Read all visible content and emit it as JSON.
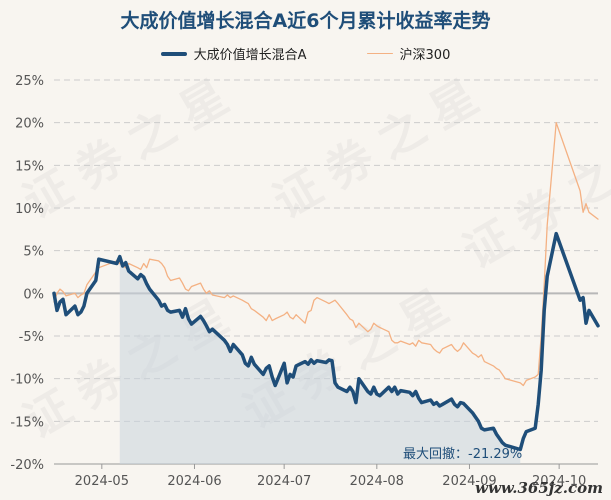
{
  "chart_data": {
    "type": "line",
    "title": "大成价值增长混合A近6个月累计收益率走势",
    "xlabel": "",
    "ylabel": "",
    "x_ticks": [
      "2024-05",
      "2024-06",
      "2024-07",
      "2024-08",
      "2024-09",
      "2024-10"
    ],
    "y_ticks": [
      "25%",
      "20%",
      "15%",
      "10%",
      "5%",
      "0%",
      "-5%",
      "-10%",
      "-15%",
      "-20%"
    ],
    "ylim": [
      -20,
      25
    ],
    "legend_position": "top-center",
    "grid": true,
    "series": [
      {
        "name": "大成价值增长混合A",
        "color": "#1f4e79",
        "style": "thick",
        "points": [
          [
            "2024-04-15",
            0.0
          ],
          [
            "2024-04-16",
            -2.0
          ],
          [
            "2024-04-17",
            -1.0
          ],
          [
            "2024-04-18",
            -0.7
          ],
          [
            "2024-04-19",
            -2.5
          ],
          [
            "2024-04-22",
            -1.5
          ],
          [
            "2024-04-23",
            -2.5
          ],
          [
            "2024-04-24",
            -2.2
          ],
          [
            "2024-04-25",
            -1.5
          ],
          [
            "2024-04-26",
            0.0
          ],
          [
            "2024-04-29",
            1.5
          ],
          [
            "2024-04-30",
            4.0
          ],
          [
            "2024-05-06",
            3.5
          ],
          [
            "2024-05-07",
            4.3
          ],
          [
            "2024-05-08",
            3.2
          ],
          [
            "2024-05-09",
            3.6
          ],
          [
            "2024-05-10",
            2.6
          ],
          [
            "2024-05-13",
            1.7
          ],
          [
            "2024-05-14",
            2.2
          ],
          [
            "2024-05-15",
            1.9
          ],
          [
            "2024-05-16",
            1.1
          ],
          [
            "2024-05-17",
            0.5
          ],
          [
            "2024-05-20",
            -0.8
          ],
          [
            "2024-05-21",
            -1.5
          ],
          [
            "2024-05-22",
            -1.3
          ],
          [
            "2024-05-23",
            -2.0
          ],
          [
            "2024-05-24",
            -2.2
          ],
          [
            "2024-05-27",
            -2.0
          ],
          [
            "2024-05-28",
            -2.8
          ],
          [
            "2024-05-29",
            -1.8
          ],
          [
            "2024-05-30",
            -3.0
          ],
          [
            "2024-05-31",
            -3.6
          ],
          [
            "2024-06-03",
            -2.7
          ],
          [
            "2024-06-04",
            -3.2
          ],
          [
            "2024-06-05",
            -3.8
          ],
          [
            "2024-06-06",
            -4.5
          ],
          [
            "2024-06-07",
            -4.2
          ],
          [
            "2024-06-11",
            -5.5
          ],
          [
            "2024-06-12",
            -6.0
          ],
          [
            "2024-06-13",
            -6.8
          ],
          [
            "2024-06-14",
            -6.0
          ],
          [
            "2024-06-17",
            -7.2
          ],
          [
            "2024-06-18",
            -8.2
          ],
          [
            "2024-06-19",
            -8.5
          ],
          [
            "2024-06-20",
            -7.5
          ],
          [
            "2024-06-21",
            -8.3
          ],
          [
            "2024-06-24",
            -9.5
          ],
          [
            "2024-06-25",
            -8.8
          ],
          [
            "2024-06-26",
            -8.5
          ],
          [
            "2024-06-27",
            -9.8
          ],
          [
            "2024-06-28",
            -10.8
          ],
          [
            "2024-07-01",
            -8.2
          ],
          [
            "2024-07-02",
            -10.5
          ],
          [
            "2024-07-03",
            -9.5
          ],
          [
            "2024-07-04",
            -9.8
          ],
          [
            "2024-07-05",
            -8.5
          ],
          [
            "2024-07-08",
            -8.0
          ],
          [
            "2024-07-09",
            -8.3
          ],
          [
            "2024-07-10",
            -7.8
          ],
          [
            "2024-07-11",
            -8.2
          ],
          [
            "2024-07-12",
            -7.9
          ],
          [
            "2024-07-15",
            -8.1
          ],
          [
            "2024-07-16",
            -7.8
          ],
          [
            "2024-07-17",
            -7.9
          ],
          [
            "2024-07-18",
            -10.5
          ],
          [
            "2024-07-19",
            -11.0
          ],
          [
            "2024-07-22",
            -11.5
          ],
          [
            "2024-07-23",
            -11.0
          ],
          [
            "2024-07-24",
            -11.5
          ],
          [
            "2024-07-25",
            -12.8
          ],
          [
            "2024-07-26",
            -10.0
          ],
          [
            "2024-07-29",
            -11.5
          ],
          [
            "2024-07-30",
            -11.8
          ],
          [
            "2024-07-31",
            -11.0
          ],
          [
            "2024-08-01",
            -11.8
          ],
          [
            "2024-08-02",
            -12.0
          ],
          [
            "2024-08-05",
            -11.0
          ],
          [
            "2024-08-06",
            -11.5
          ],
          [
            "2024-08-07",
            -11.0
          ],
          [
            "2024-08-08",
            -11.8
          ],
          [
            "2024-08-09",
            -11.4
          ],
          [
            "2024-08-12",
            -11.6
          ],
          [
            "2024-08-13",
            -12.0
          ],
          [
            "2024-08-14",
            -11.5
          ],
          [
            "2024-08-15",
            -12.3
          ],
          [
            "2024-08-16",
            -12.8
          ],
          [
            "2024-08-19",
            -12.5
          ],
          [
            "2024-08-20",
            -13.0
          ],
          [
            "2024-08-21",
            -12.8
          ],
          [
            "2024-08-22",
            -13.2
          ],
          [
            "2024-08-23",
            -13.0
          ],
          [
            "2024-08-26",
            -12.4
          ],
          [
            "2024-08-27",
            -13.0
          ],
          [
            "2024-08-28",
            -13.3
          ],
          [
            "2024-08-29",
            -12.8
          ],
          [
            "2024-08-30",
            -12.9
          ],
          [
            "2024-09-02",
            -14.0
          ],
          [
            "2024-09-03",
            -14.5
          ],
          [
            "2024-09-04",
            -15.0
          ],
          [
            "2024-09-05",
            -15.8
          ],
          [
            "2024-09-06",
            -16.0
          ],
          [
            "2024-09-09",
            -15.8
          ],
          [
            "2024-09-10",
            -16.5
          ],
          [
            "2024-09-11",
            -17.0
          ],
          [
            "2024-09-12",
            -17.5
          ],
          [
            "2024-09-13",
            -17.8
          ],
          [
            "2024-09-18",
            -18.3
          ],
          [
            "2024-09-19",
            -17.0
          ],
          [
            "2024-09-20",
            -16.2
          ],
          [
            "2024-09-23",
            -15.8
          ],
          [
            "2024-09-24",
            -13.0
          ],
          [
            "2024-09-25",
            -9.0
          ],
          [
            "2024-09-26",
            -2.0
          ],
          [
            "2024-09-27",
            2.0
          ],
          [
            "2024-09-30",
            7.0
          ],
          [
            "2024-10-08",
            -0.8
          ],
          [
            "2024-10-09",
            -0.5
          ],
          [
            "2024-10-10",
            -3.5
          ],
          [
            "2024-10-11",
            -2.0
          ],
          [
            "2024-10-14",
            -3.8
          ]
        ]
      },
      {
        "name": "沪深300",
        "color": "#f4b183",
        "style": "thin",
        "points": [
          [
            "2024-04-15",
            -1.0
          ],
          [
            "2024-04-16",
            0.0
          ],
          [
            "2024-04-17",
            0.5
          ],
          [
            "2024-04-18",
            0.2
          ],
          [
            "2024-04-19",
            -0.3
          ],
          [
            "2024-04-22",
            0.0
          ],
          [
            "2024-04-23",
            -0.5
          ],
          [
            "2024-04-24",
            -0.2
          ],
          [
            "2024-04-25",
            0.0
          ],
          [
            "2024-04-26",
            1.0
          ],
          [
            "2024-04-29",
            2.5
          ],
          [
            "2024-04-30",
            3.0
          ],
          [
            "2024-05-06",
            3.8
          ],
          [
            "2024-05-07",
            3.5
          ],
          [
            "2024-05-08",
            3.2
          ],
          [
            "2024-05-09",
            3.0
          ],
          [
            "2024-05-10",
            3.5
          ],
          [
            "2024-05-13",
            3.0
          ],
          [
            "2024-05-14",
            2.8
          ],
          [
            "2024-05-15",
            3.5
          ],
          [
            "2024-05-16",
            3.0
          ],
          [
            "2024-05-17",
            4.0
          ],
          [
            "2024-05-20",
            3.8
          ],
          [
            "2024-05-21",
            3.5
          ],
          [
            "2024-05-22",
            3.0
          ],
          [
            "2024-05-23",
            2.0
          ],
          [
            "2024-05-24",
            1.5
          ],
          [
            "2024-05-27",
            1.8
          ],
          [
            "2024-05-28",
            1.2
          ],
          [
            "2024-05-29",
            0.5
          ],
          [
            "2024-05-30",
            0.3
          ],
          [
            "2024-05-31",
            0.8
          ],
          [
            "2024-06-03",
            1.2
          ],
          [
            "2024-06-04",
            0.5
          ],
          [
            "2024-06-05",
            0.0
          ],
          [
            "2024-06-06",
            0.3
          ],
          [
            "2024-06-07",
            -0.2
          ],
          [
            "2024-06-11",
            -0.5
          ],
          [
            "2024-06-12",
            -0.2
          ],
          [
            "2024-06-13",
            -0.5
          ],
          [
            "2024-06-14",
            -0.3
          ],
          [
            "2024-06-17",
            -0.8
          ],
          [
            "2024-06-18",
            -1.0
          ],
          [
            "2024-06-19",
            -1.2
          ],
          [
            "2024-06-20",
            -1.8
          ],
          [
            "2024-06-21",
            -2.0
          ],
          [
            "2024-06-24",
            -2.8
          ],
          [
            "2024-06-25",
            -3.2
          ],
          [
            "2024-06-26",
            -2.5
          ],
          [
            "2024-06-27",
            -3.2
          ],
          [
            "2024-06-28",
            -3.0
          ],
          [
            "2024-07-01",
            -2.5
          ],
          [
            "2024-07-02",
            -2.2
          ],
          [
            "2024-07-03",
            -2.8
          ],
          [
            "2024-07-04",
            -3.0
          ],
          [
            "2024-07-05",
            -2.5
          ],
          [
            "2024-07-08",
            -3.5
          ],
          [
            "2024-07-09",
            -2.2
          ],
          [
            "2024-07-10",
            -2.0
          ],
          [
            "2024-07-11",
            -0.8
          ],
          [
            "2024-07-12",
            -0.5
          ],
          [
            "2024-07-15",
            -1.0
          ],
          [
            "2024-07-16",
            -1.2
          ],
          [
            "2024-07-17",
            -1.0
          ],
          [
            "2024-07-18",
            -0.8
          ],
          [
            "2024-07-19",
            -1.2
          ],
          [
            "2024-07-22",
            -2.5
          ],
          [
            "2024-07-23",
            -3.0
          ],
          [
            "2024-07-24",
            -3.2
          ],
          [
            "2024-07-25",
            -4.0
          ],
          [
            "2024-07-26",
            -3.5
          ],
          [
            "2024-07-29",
            -4.5
          ],
          [
            "2024-07-30",
            -4.2
          ],
          [
            "2024-07-31",
            -3.5
          ],
          [
            "2024-08-01",
            -3.8
          ],
          [
            "2024-08-02",
            -4.0
          ],
          [
            "2024-08-05",
            -4.5
          ],
          [
            "2024-08-06",
            -5.5
          ],
          [
            "2024-08-07",
            -5.8
          ],
          [
            "2024-08-08",
            -5.8
          ],
          [
            "2024-08-09",
            -5.6
          ],
          [
            "2024-08-12",
            -6.0
          ],
          [
            "2024-08-13",
            -5.8
          ],
          [
            "2024-08-14",
            -6.2
          ],
          [
            "2024-08-15",
            -5.5
          ],
          [
            "2024-08-16",
            -5.8
          ],
          [
            "2024-08-19",
            -6.0
          ],
          [
            "2024-08-20",
            -6.5
          ],
          [
            "2024-08-21",
            -6.8
          ],
          [
            "2024-08-22",
            -7.0
          ],
          [
            "2024-08-23",
            -6.5
          ],
          [
            "2024-08-26",
            -6.0
          ],
          [
            "2024-08-27",
            -6.5
          ],
          [
            "2024-08-28",
            -6.8
          ],
          [
            "2024-08-29",
            -6.5
          ],
          [
            "2024-08-30",
            -5.8
          ],
          [
            "2024-09-02",
            -7.0
          ],
          [
            "2024-09-03",
            -7.2
          ],
          [
            "2024-09-04",
            -7.5
          ],
          [
            "2024-09-05",
            -7.2
          ],
          [
            "2024-09-06",
            -8.0
          ],
          [
            "2024-09-09",
            -8.5
          ],
          [
            "2024-09-10",
            -8.8
          ],
          [
            "2024-09-11",
            -9.0
          ],
          [
            "2024-09-12",
            -9.5
          ],
          [
            "2024-09-13",
            -10.0
          ],
          [
            "2024-09-18",
            -10.5
          ],
          [
            "2024-09-19",
            -10.8
          ],
          [
            "2024-09-20",
            -10.2
          ],
          [
            "2024-09-23",
            -9.8
          ],
          [
            "2024-09-24",
            -9.5
          ],
          [
            "2024-09-25",
            -5.0
          ],
          [
            "2024-09-26",
            1.0
          ],
          [
            "2024-09-27",
            8.0
          ],
          [
            "2024-09-30",
            20.0
          ],
          [
            "2024-10-08",
            12.0
          ],
          [
            "2024-10-09",
            9.5
          ],
          [
            "2024-10-10",
            10.5
          ],
          [
            "2024-10-11",
            9.5
          ],
          [
            "2024-10-14",
            8.7
          ]
        ]
      }
    ],
    "drawdown": {
      "label": "最大回撤：-21.29%",
      "start": "2024-05-07",
      "end": "2024-09-18",
      "fill_color": "#c8d3dc"
    }
  },
  "watermark": "证券之星",
  "site_label": "www.365jz.com"
}
